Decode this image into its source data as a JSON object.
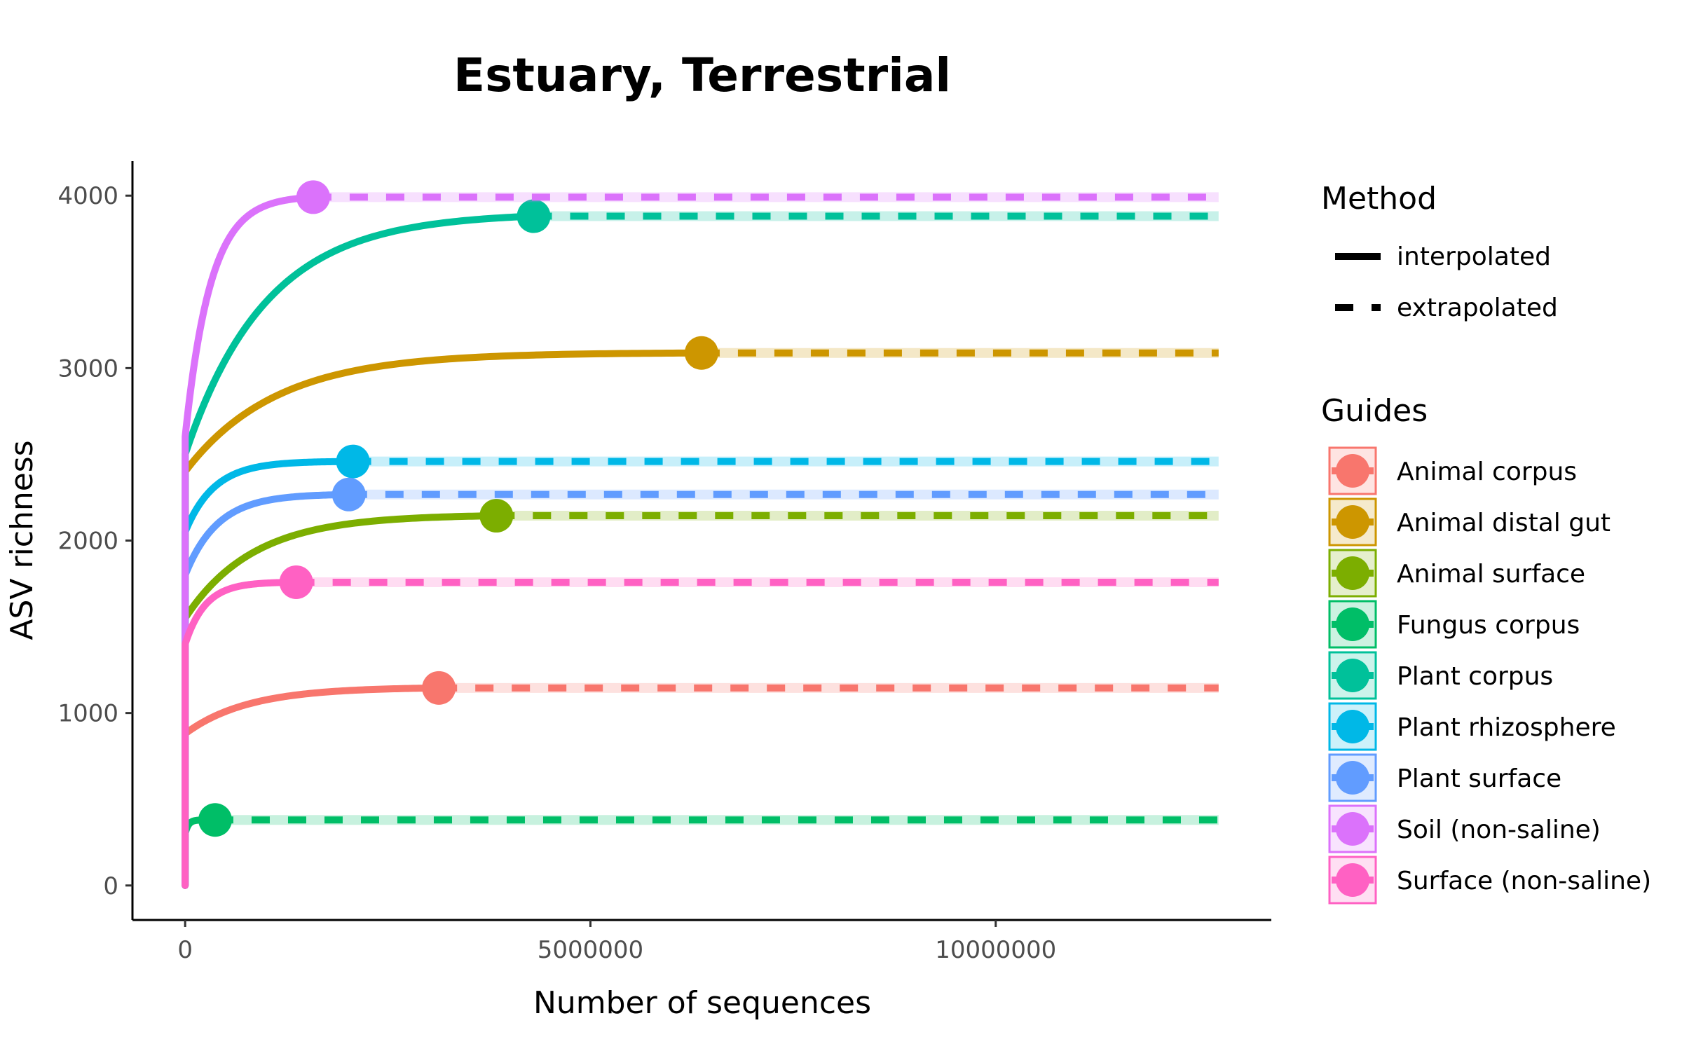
{
  "chart_data": {
    "type": "line",
    "title": "Estuary, Terrestrial",
    "xlabel": "Number of sequences",
    "ylabel": "ASV richness",
    "xlim": [
      -650000,
      13400000
    ],
    "ylim": [
      -200,
      4200
    ],
    "x_ticks": [
      0,
      5000000,
      10000000
    ],
    "x_tick_labels": [
      "0",
      "5000000",
      "10000000"
    ],
    "y_ticks": [
      0,
      1000,
      2000,
      3000,
      4000
    ],
    "y_tick_labels": [
      "0",
      "1000",
      "2000",
      "3000",
      "4000"
    ],
    "grid": false,
    "x_max_extrapolated": 12750000,
    "legend": {
      "placement": "right",
      "method_title": "Method",
      "methods": [
        {
          "name": "interpolated",
          "style": "solid"
        },
        {
          "name": "extrapolated",
          "style": "dashed"
        }
      ],
      "guides_title": "Guides"
    },
    "series": [
      {
        "name": "Animal corpus",
        "color": "#F8766D",
        "x_observed": 3130000,
        "asymptote": 1150,
        "k": 1.3e-06,
        "y0": 880
      },
      {
        "name": "Animal distal gut",
        "color": "#CD9600",
        "x_observed": 6370000,
        "asymptote": 3090,
        "k": 9e-07,
        "y0": 2400
      },
      {
        "name": "Animal surface",
        "color": "#7CAE00",
        "x_observed": 3840000,
        "asymptote": 2150,
        "k": 1.2e-06,
        "y0": 1550
      },
      {
        "name": "Fungus corpus",
        "color": "#00BE67",
        "x_observed": 370000,
        "asymptote": 380,
        "k": 2.5e-05,
        "y0": 300
      },
      {
        "name": "Plant corpus",
        "color": "#00BFC4",
        "x_observed": 4300000,
        "asymptote": 3900,
        "k": 1e-06,
        "y0": 2500,
        "display_color": "#00C19A"
      },
      {
        "name": "Plant rhizosphere",
        "color": "#00B8E7",
        "x_observed": 2070000,
        "asymptote": 2460,
        "k": 2.8e-06,
        "y0": 2050
      },
      {
        "name": "Plant surface",
        "color": "#619CFF",
        "x_observed": 2020000,
        "asymptote": 2270,
        "k": 2.5e-06,
        "y0": 1800
      },
      {
        "name": "Soil (non-saline)",
        "color": "#DB72FB",
        "x_observed": 1580000,
        "asymptote": 4000,
        "k": 3.2e-06,
        "y0": 2600
      },
      {
        "name": "Surface (non-saline)",
        "color": "#FF61C3",
        "x_observed": 1370000,
        "asymptote": 1760,
        "k": 4e-06,
        "y0": 1400
      }
    ]
  }
}
